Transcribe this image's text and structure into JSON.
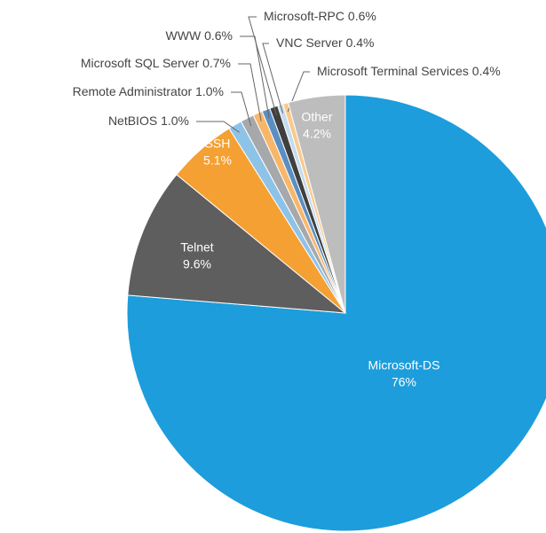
{
  "chart_data": {
    "type": "pie",
    "categories": [
      "Microsoft-DS",
      "Telnet",
      "SSH",
      "NetBIOS",
      "Remote Administrator",
      "Microsoft SQL Server",
      "WWW",
      "Microsoft-RPC",
      "VNC Server",
      "Microsoft Terminal Services",
      "Other"
    ],
    "values": [
      76,
      9.6,
      5.1,
      1.0,
      1.0,
      0.7,
      0.6,
      0.6,
      0.4,
      0.4,
      4.2
    ],
    "value_labels": [
      "76%",
      "9.6%",
      "5.1%",
      "1.0%",
      "1.0%",
      "0.7%",
      "0.6%",
      "0.6%",
      "0.4%",
      "0.4%",
      "4.2%"
    ],
    "colors": [
      "#1d9ddb",
      "#5e5e5e",
      "#f5a033",
      "#8ec3e8",
      "#a6a8ab",
      "#f8b768",
      "#5b8fc2",
      "#3f3f3f",
      "#c4dcef",
      "#f9ca8e",
      "#bdbdbd"
    ]
  }
}
